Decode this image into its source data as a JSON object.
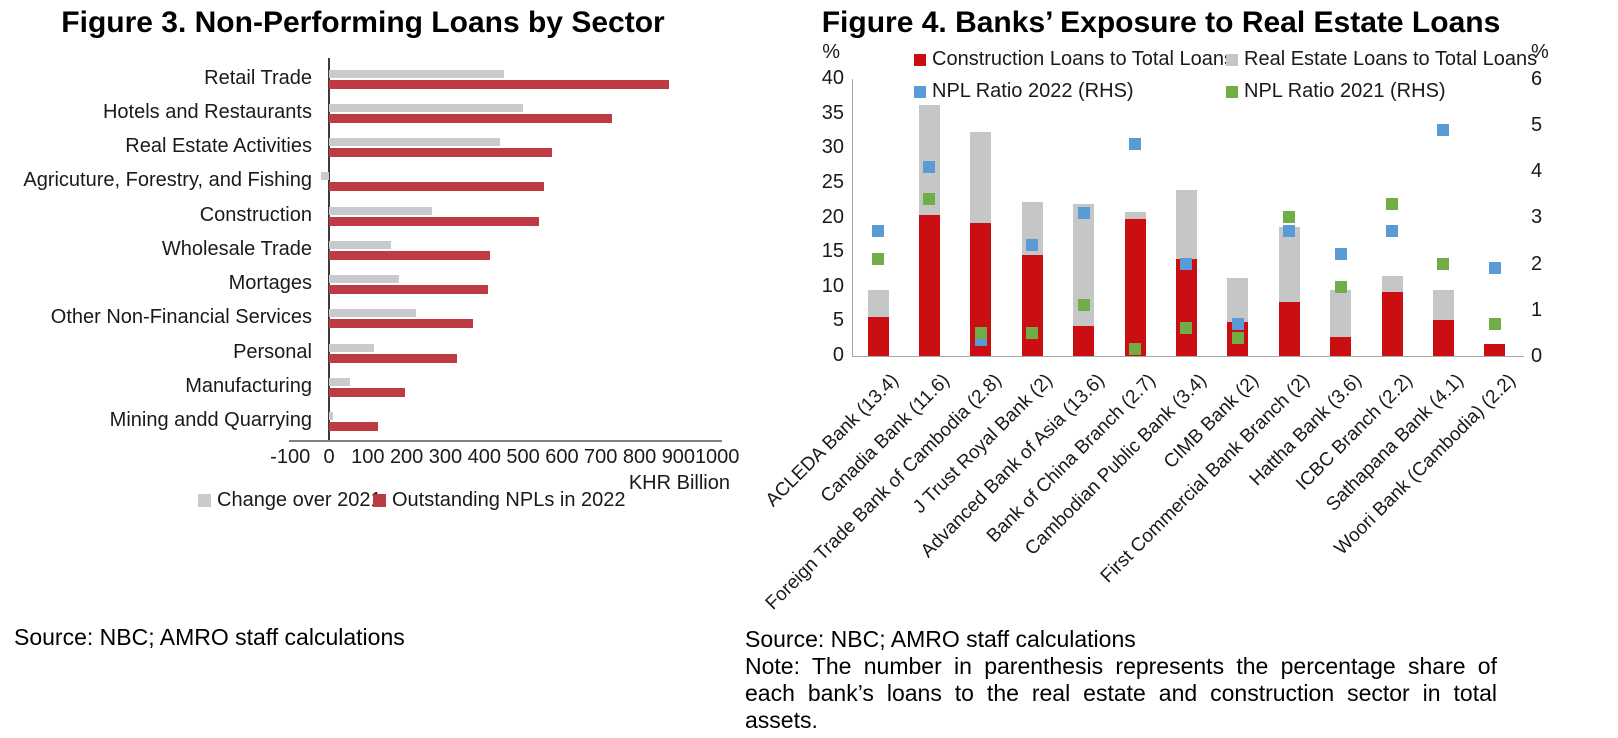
{
  "chart_data": [
    {
      "id": "fig3",
      "type": "bar",
      "orientation": "horizontal",
      "title": "Figure 3. Non-Performing Loans by Sector",
      "categories": [
        "Retail Trade",
        "Hotels and Restaurants",
        "Real Estate Activities",
        "Agricuture, Forestry, and Fishing",
        "Construction",
        "Wholesale Trade",
        "Mortages",
        "Other Non-Financial Services",
        "Personal",
        "Manufacturing",
        "Mining andd Quarrying"
      ],
      "series": [
        {
          "name": "Change over 2021",
          "color": "#C9CACD",
          "values": [
            450,
            500,
            440,
            -20,
            265,
            160,
            180,
            225,
            115,
            55,
            10
          ]
        },
        {
          "name": "Outstanding NPLs in 2022",
          "color": "#BE3B43",
          "values": [
            875,
            730,
            575,
            555,
            540,
            415,
            410,
            370,
            330,
            195,
            125
          ]
        }
      ],
      "xlabel": "KHR Billion",
      "xlim": [
        -100,
        1000
      ],
      "xticks": [
        -100,
        0,
        100,
        200,
        300,
        400,
        500,
        600,
        700,
        800,
        900,
        1000
      ],
      "legend_position": "bottom",
      "grid": false,
      "source": "Source: NBC; AMRO staff calculations"
    },
    {
      "id": "fig4",
      "type": "bar",
      "subtype": "stacked-bars-with-square-markers",
      "title": "Figure 4. Banks’ Exposure to Real Estate Loans",
      "categories": [
        "ACLEDA Bank (13.4)",
        "Canadia Bank (11.6)",
        "Foreign Trade Bank of Cambodia (2.8)",
        "J Trust Royal Bank (2)",
        "Advanced Bank of Asia (13.6)",
        "Bank of China Branch (2.7)",
        "Cambodian Public Bank (3.4)",
        "CIMB Bank (2)",
        "First Commercial Bank Branch (2)",
        "Hattha Bank (3.6)",
        "ICBC Branch (2.2)",
        "Sathapana Bank (4.1)",
        "Woori Bank (Cambodia) (2.2)"
      ],
      "series": [
        {
          "name": "Construction Loans to Total Loans",
          "type": "bar-stacked",
          "axis": "left",
          "color": "#CB0E12",
          "values": [
            5.6,
            20.3,
            19.2,
            14.6,
            4.4,
            19.8,
            14.0,
            4.9,
            7.8,
            2.8,
            9.3,
            5.2,
            1.8
          ]
        },
        {
          "name": "Real Estate Loans to Total Loans",
          "type": "bar-stacked",
          "axis": "left",
          "color": "#C5C6C6",
          "values": [
            4.0,
            15.9,
            13.1,
            7.6,
            17.5,
            1.0,
            10.0,
            6.4,
            10.8,
            6.7,
            2.3,
            4.3,
            0
          ]
        },
        {
          "name": "NPL Ratio 2022 (RHS)",
          "type": "square-marker",
          "axis": "right",
          "color": "#5B9BD5",
          "values": [
            2.7,
            4.1,
            0.35,
            2.4,
            3.1,
            4.6,
            2.0,
            0.7,
            2.7,
            2.2,
            2.7,
            4.9,
            1.9
          ]
        },
        {
          "name": "NPL Ratio 2021 (RHS)",
          "type": "square-marker",
          "axis": "right",
          "color": "#70AD47",
          "values": [
            2.1,
            3.4,
            0.5,
            0.5,
            1.1,
            0.15,
            0.6,
            0.4,
            3.0,
            1.5,
            3.3,
            2.0,
            0.7
          ]
        }
      ],
      "left_axis": {
        "label": "%",
        "lim": [
          0,
          40
        ],
        "ticks": [
          0,
          5,
          10,
          15,
          20,
          25,
          30,
          35,
          40
        ]
      },
      "right_axis": {
        "label": "%",
        "lim": [
          0,
          6
        ],
        "ticks": [
          0,
          1,
          2,
          3,
          4,
          5,
          6
        ]
      },
      "legend_position": "top",
      "grid": false,
      "source": "Source: NBC; AMRO staff calculations",
      "note": "Note: The number in parenthesis represents the percentage share of each bank’s loans to the real estate and construction sector in total assets."
    }
  ]
}
